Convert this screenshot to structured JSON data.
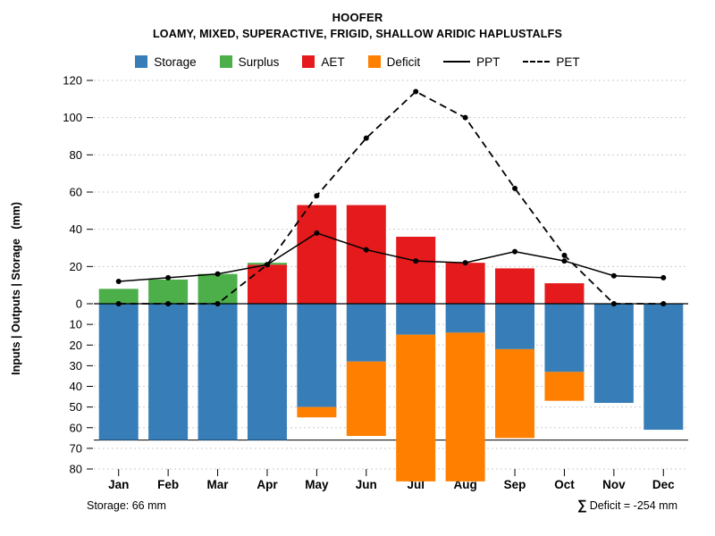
{
  "chart_data": {
    "type": "bar",
    "title": "HOOFER",
    "subtitle": "LOAMY, MIXED, SUPERACTIVE, FRIGID, SHALLOW ARIDIC HAPLUSTALFS",
    "ylabel": "Inputs | Outputs | Storage   (mm)",
    "categories": [
      "Jan",
      "Feb",
      "Mar",
      "Apr",
      "May",
      "Jun",
      "Jul",
      "Aug",
      "Sep",
      "Oct",
      "Nov",
      "Dec"
    ],
    "axis_top": {
      "ticks": [
        0,
        20,
        40,
        60,
        80,
        100,
        120
      ],
      "ylim": [
        0,
        120
      ]
    },
    "axis_bottom": {
      "ticks": [
        10,
        20,
        30,
        40,
        50,
        60,
        70,
        80
      ],
      "ylim": [
        0,
        80
      ],
      "inverted": true
    },
    "grid": true,
    "legend_position": "top",
    "storage_capacity_line": 66,
    "clip_bottom_mm": 86,
    "series": [
      {
        "name": "Surplus",
        "type": "bar",
        "direction": "up",
        "stack_order": 2,
        "color": "#4DAF4A",
        "values": [
          8,
          13,
          16,
          1,
          0,
          0,
          0,
          0,
          0,
          0,
          0,
          0
        ]
      },
      {
        "name": "AET",
        "type": "bar",
        "direction": "up",
        "stack_order": 1,
        "color": "#E41A1C",
        "values": [
          0,
          0,
          0,
          21,
          53,
          53,
          36,
          22,
          19,
          11,
          0,
          0
        ]
      },
      {
        "name": "Storage",
        "type": "bar",
        "direction": "down",
        "stack_order": 1,
        "color": "#377EB8",
        "values": [
          66,
          66,
          66,
          66,
          50,
          28,
          15,
          14,
          22,
          33,
          48,
          61
        ]
      },
      {
        "name": "Deficit",
        "type": "bar",
        "direction": "down",
        "stack_order": 2,
        "color": "#FF7F00",
        "values": [
          0,
          0,
          0,
          0,
          5,
          36,
          78,
          78,
          43,
          14,
          0,
          0
        ]
      },
      {
        "name": "PPT",
        "type": "line",
        "line_style": "solid",
        "marker": "circle",
        "color": "#000000",
        "values": [
          12,
          14,
          16,
          21,
          38,
          29,
          23,
          22,
          28,
          23,
          15,
          14
        ]
      },
      {
        "name": "PET",
        "type": "line",
        "line_style": "dashed",
        "marker": "circle",
        "color": "#000000",
        "values": [
          0,
          0,
          0,
          21,
          58,
          89,
          114,
          100,
          62,
          26,
          0,
          0
        ]
      }
    ],
    "annotations": {
      "storage_note": "Storage: 66 mm",
      "deficit_sigma": "∑",
      "deficit_note": "Deficit = -254 mm"
    }
  }
}
